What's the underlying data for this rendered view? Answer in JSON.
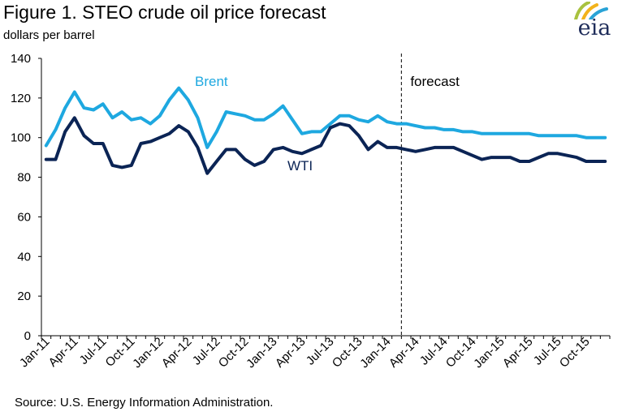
{
  "title": "Figure 1. STEO crude oil price forecast",
  "ylabel": "dollars per barrel",
  "source": "Source: U.S. Energy Information  Administration.",
  "logo": "eia",
  "colors": {
    "brent": "#1ea8e0",
    "wti": "#0b2455",
    "axis": "#000000"
  },
  "chart_data": {
    "type": "line",
    "title": "Figure 1. STEO crude oil price forecast",
    "ylabel": "dollars per barrel",
    "xlabel": "",
    "ylim": [
      0,
      140
    ],
    "yticks": [
      0,
      20,
      40,
      60,
      80,
      100,
      120,
      140
    ],
    "grid": false,
    "xtick_labels": [
      "Jan-11",
      "Apr-11",
      "Jul-11",
      "Oct-11",
      "Jan-12",
      "Apr-12",
      "Jul-12",
      "Oct-12",
      "Jan-13",
      "Apr-13",
      "Jul-13",
      "Oct-13",
      "Jan-14",
      "Apr-14",
      "Jul-14",
      "Oct-14",
      "Jan-15",
      "Apr-15",
      "Jul-15",
      "Oct-15"
    ],
    "forecast_start_index": 38,
    "forecast_label": "forecast",
    "series": [
      {
        "name": "Brent",
        "values": [
          96,
          104,
          115,
          123,
          115,
          114,
          117,
          110,
          113,
          109,
          110,
          107,
          111,
          119,
          125,
          119,
          110,
          95,
          103,
          113,
          112,
          111,
          109,
          109,
          112,
          116,
          109,
          102,
          103,
          103,
          107,
          111,
          111,
          109,
          108,
          111,
          108,
          107,
          107,
          106,
          105,
          105,
          104,
          104,
          103,
          103,
          102,
          102,
          102,
          102,
          102,
          102,
          101,
          101,
          101,
          101,
          101,
          100,
          100,
          100
        ]
      },
      {
        "name": "WTI",
        "values": [
          89,
          89,
          103,
          110,
          101,
          97,
          97,
          86,
          85,
          86,
          97,
          98,
          100,
          102,
          106,
          103,
          95,
          82,
          88,
          94,
          94,
          89,
          86,
          88,
          94,
          95,
          93,
          92,
          94,
          96,
          105,
          107,
          106,
          101,
          94,
          98,
          95,
          95,
          94,
          93,
          94,
          95,
          95,
          95,
          93,
          91,
          89,
          90,
          90,
          90,
          88,
          88,
          90,
          92,
          92,
          91,
          90,
          88,
          88,
          88
        ]
      }
    ]
  }
}
